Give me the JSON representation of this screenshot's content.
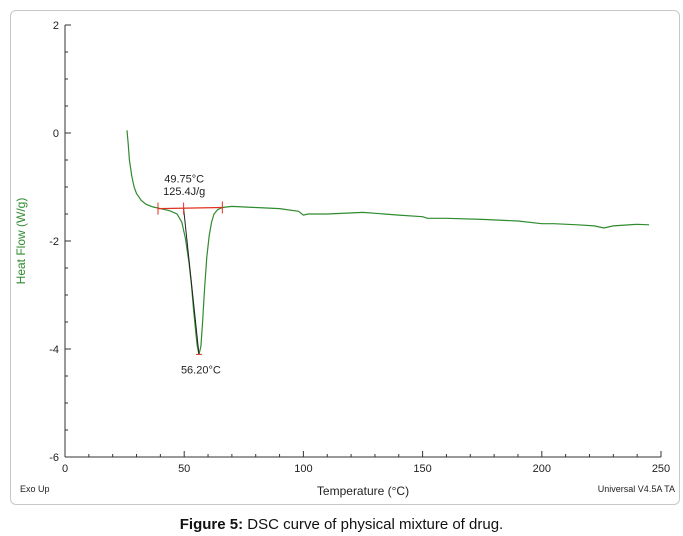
{
  "chart_data": {
    "type": "line",
    "xlabel": "Temperature (°C)",
    "ylabel": "Heat Flow (W/g)",
    "xlim": [
      0,
      250
    ],
    "ylim": [
      -6,
      2
    ],
    "x_ticks": [
      0,
      50,
      100,
      150,
      200,
      250
    ],
    "y_ticks": [
      2,
      0,
      -2,
      -4,
      -6
    ],
    "grid": false,
    "series": [
      {
        "color": "#2e8b2e",
        "x": [
          26,
          26.5,
          27,
          28,
          29,
          30,
          32,
          34,
          37,
          40,
          44,
          47,
          49,
          50.5,
          52,
          53,
          54,
          55,
          55.5,
          56.2,
          57,
          57.7,
          58.5,
          59.5,
          60.5,
          61.5,
          62.5,
          64,
          66,
          70,
          80,
          90,
          98,
          100,
          102,
          110,
          125,
          140,
          150,
          152,
          160,
          175,
          190,
          200,
          205,
          215,
          222,
          226,
          230,
          240,
          245
        ],
        "y": [
          0.05,
          -0.2,
          -0.5,
          -0.8,
          -1.0,
          -1.12,
          -1.25,
          -1.32,
          -1.37,
          -1.4,
          -1.44,
          -1.5,
          -1.65,
          -1.95,
          -2.4,
          -2.8,
          -3.3,
          -3.75,
          -3.95,
          -4.1,
          -3.95,
          -3.5,
          -2.9,
          -2.3,
          -1.9,
          -1.65,
          -1.5,
          -1.42,
          -1.38,
          -1.36,
          -1.38,
          -1.4,
          -1.45,
          -1.52,
          -1.5,
          -1.5,
          -1.47,
          -1.52,
          -1.55,
          -1.58,
          -1.58,
          -1.6,
          -1.63,
          -1.68,
          -1.68,
          -1.7,
          -1.72,
          -1.76,
          -1.72,
          -1.69,
          -1.7
        ]
      }
    ],
    "baseline": {
      "x": [
        39,
        66
      ],
      "y": [
        -1.4,
        -1.38
      ],
      "color": "#e03020"
    },
    "tangent": {
      "x": [
        49.75,
        56.2
      ],
      "y": [
        -1.4,
        -4.1
      ],
      "color": "#222222"
    },
    "annotations": [
      {
        "text": "49.75°C",
        "x": 50,
        "y": -0.92
      },
      {
        "text": "125.4J/g",
        "x": 50,
        "y": -1.15
      },
      {
        "text": "56.20°C",
        "x": 57,
        "y": -4.45
      }
    ]
  },
  "footer": {
    "left_label": "Exo Up",
    "right_label": "Universal V4.5A TA"
  },
  "caption": {
    "label": "Figure 5:",
    "text": " DSC curve of physical mixture of drug."
  },
  "colors": {
    "axis_label": "#2e8b2e",
    "curve": "#2e8b2e",
    "baseline": "#e03020"
  }
}
